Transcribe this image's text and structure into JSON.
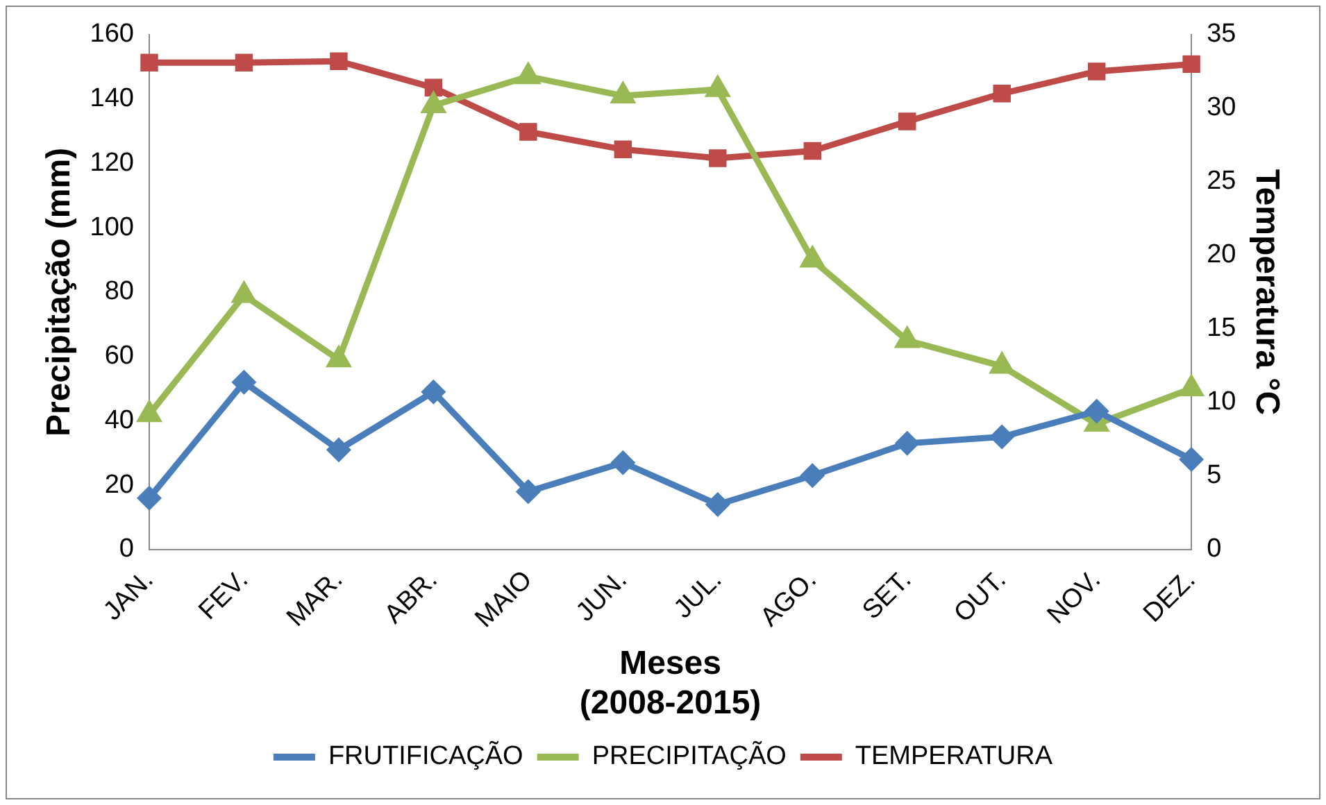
{
  "chart_data": {
    "type": "line",
    "xlabel": "Meses\n(2008-2015)",
    "ylabel": "Precipitação (mm)",
    "y2label": "Temperatura °C",
    "categories": [
      "JAN.",
      "FEV.",
      "MAR.",
      "ABR.",
      "MAIO",
      "JUN.",
      "JUL.",
      "AGO.",
      "SET.",
      "OUT.",
      "NOV.",
      "DEZ."
    ],
    "series": [
      {
        "name": "FRUTIFICAÇÃO",
        "color": "#4a7ebb",
        "marker": "diamond",
        "values": [
          16,
          52,
          31,
          49,
          18,
          27,
          14,
          23,
          33,
          35,
          43,
          28
        ]
      },
      {
        "name": "PRECIPITAÇÃO",
        "color": "#98b954",
        "marker": "triangle",
        "values": [
          42,
          79,
          59,
          138,
          147,
          141,
          143,
          90,
          65,
          57,
          39,
          50
        ]
      },
      {
        "name": "TEMPERATURA",
        "color": "#be4b48",
        "marker": "square",
        "axis": "y2",
        "values": [
          33.1,
          33.1,
          33.2,
          31.4,
          28.4,
          27.2,
          26.6,
          27.1,
          29.1,
          31.0,
          32.5,
          33.0
        ]
      }
    ],
    "ylim": [
      0,
      160
    ],
    "yticks": [
      0,
      20,
      40,
      60,
      80,
      100,
      120,
      140,
      160
    ],
    "y2lim": [
      0,
      35
    ],
    "y2ticks": [
      0,
      5,
      10,
      15,
      20,
      25,
      30,
      35
    ],
    "grid": false,
    "legend": "bottom",
    "line_style": "solid"
  }
}
